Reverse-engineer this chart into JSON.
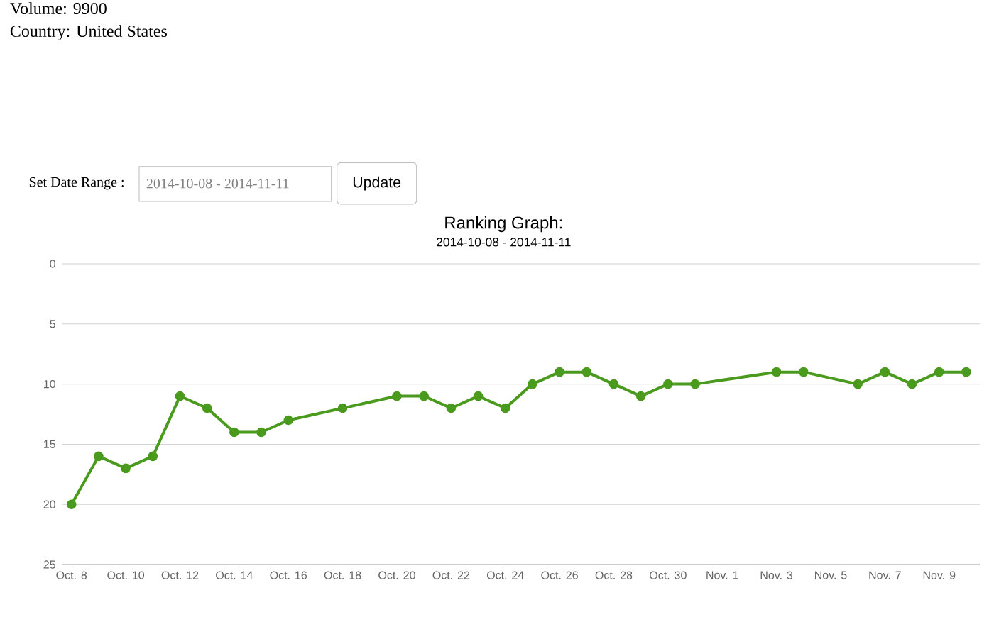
{
  "chart_data": {
    "type": "line",
    "title": "Ranking Graph:",
    "subtitle": "2014-10-08 - 2014-11-11",
    "annotations": [
      "Volume: 9900",
      "Country: United States",
      "Set Date Range :",
      "2014-10-08 - 2014-11-11",
      "Update"
    ],
    "x": [
      "2014-10-08",
      "2014-10-09",
      "2014-10-10",
      "2014-10-11",
      "2014-10-12",
      "2014-10-13",
      "2014-10-14",
      "2014-10-15",
      "2014-10-16",
      "2014-10-18",
      "2014-10-20",
      "2014-10-21",
      "2014-10-22",
      "2014-10-23",
      "2014-10-24",
      "2014-10-25",
      "2014-10-26",
      "2014-10-27",
      "2014-10-28",
      "2014-10-29",
      "2014-10-30",
      "2014-10-31",
      "2014-11-03",
      "2014-11-04",
      "2014-11-06",
      "2014-11-07",
      "2014-11-08",
      "2014-11-09",
      "2014-11-10"
    ],
    "series": [
      {
        "color": "#4a9a1e",
        "values": [
          20,
          16,
          17,
          16,
          11,
          12,
          14,
          14,
          13,
          12,
          11,
          11,
          12,
          11,
          12,
          10,
          9,
          9,
          10,
          11,
          10,
          10,
          9,
          9,
          10,
          9,
          10,
          9,
          9
        ]
      }
    ],
    "xlim": [
      "2014-10-07T16:00",
      "2014-11-10T12:00"
    ],
    "xticks": [
      {
        "value": "2014-10-08",
        "label": "Oct. 8"
      },
      {
        "value": "2014-10-10",
        "label": "Oct. 10"
      },
      {
        "value": "2014-10-12",
        "label": "Oct. 12"
      },
      {
        "value": "2014-10-14",
        "label": "Oct. 14"
      },
      {
        "value": "2014-10-16",
        "label": "Oct. 16"
      },
      {
        "value": "2014-10-18",
        "label": "Oct. 18"
      },
      {
        "value": "2014-10-20",
        "label": "Oct. 20"
      },
      {
        "value": "2014-10-22",
        "label": "Oct. 22"
      },
      {
        "value": "2014-10-24",
        "label": "Oct. 24"
      },
      {
        "value": "2014-10-26",
        "label": "Oct. 26"
      },
      {
        "value": "2014-10-28",
        "label": "Oct. 28"
      },
      {
        "value": "2014-10-30",
        "label": "Oct. 30"
      },
      {
        "value": "2014-11-01",
        "label": "Nov. 1"
      },
      {
        "value": "2014-11-03",
        "label": "Nov. 3"
      },
      {
        "value": "2014-11-05",
        "label": "Nov. 5"
      },
      {
        "value": "2014-11-07",
        "label": "Nov. 7"
      },
      {
        "value": "2014-11-09",
        "label": "Nov. 9"
      }
    ],
    "ylim": [
      25,
      0
    ],
    "yticks": [
      0,
      5,
      10,
      15,
      20,
      25
    ],
    "grid": "y",
    "marker": "circle",
    "line_style": "solid"
  }
}
